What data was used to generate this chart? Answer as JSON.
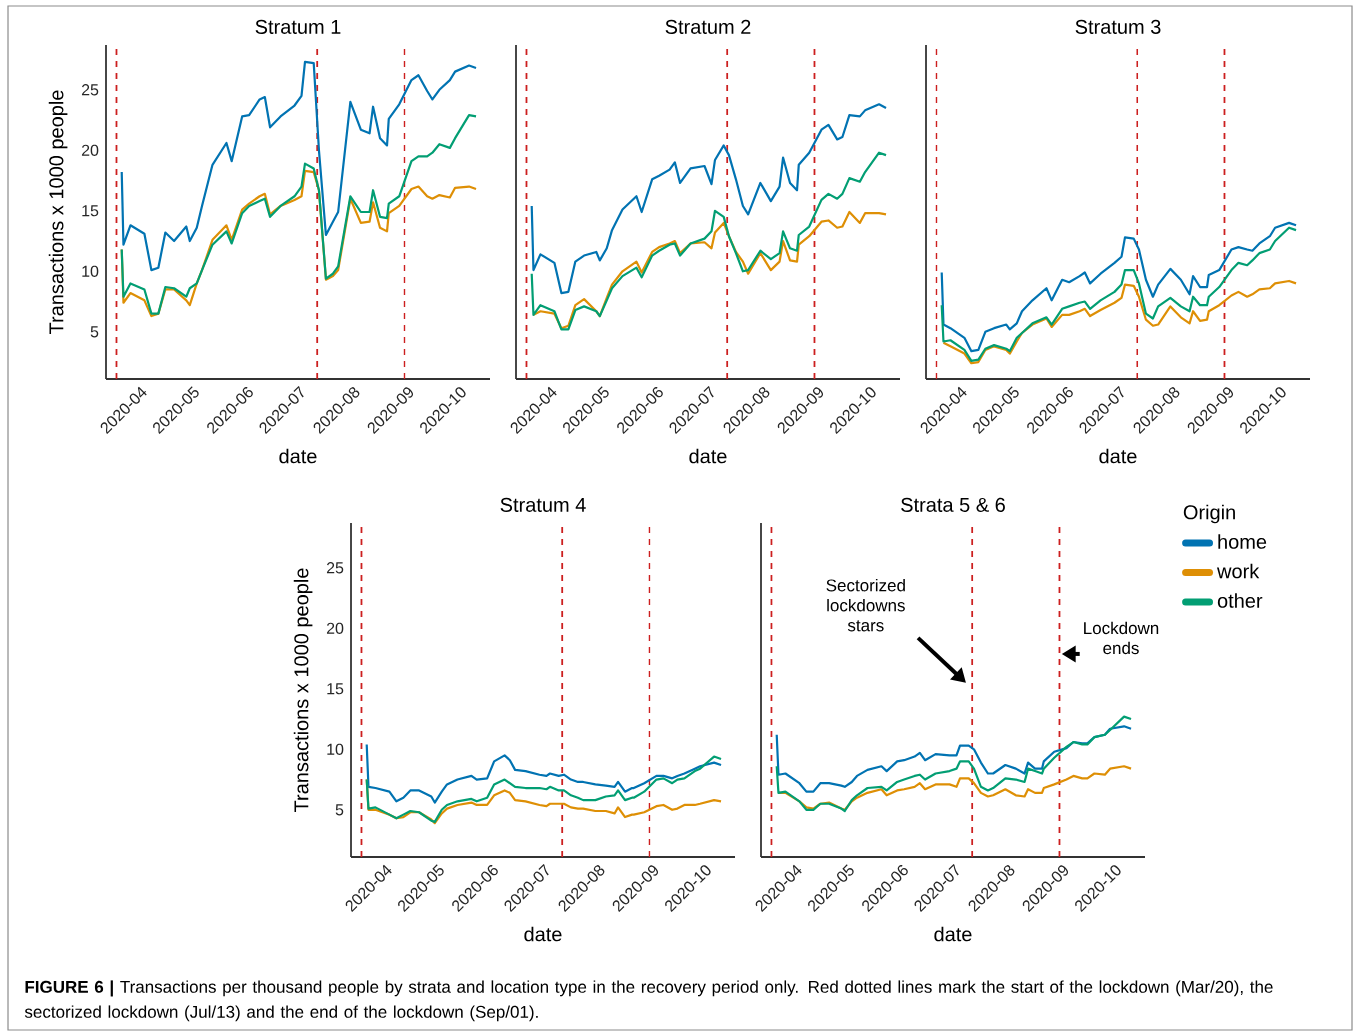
{
  "chart_data": [
    {
      "type": "line",
      "title": "Stratum 1",
      "xlabel": "date",
      "ylabel": "Transactions x 1000 people",
      "x": [
        "2020-03-23",
        "2020-03-24",
        "2020-03-28",
        "2020-04-05",
        "2020-04-09",
        "2020-04-13",
        "2020-04-17",
        "2020-04-22",
        "2020-04-29",
        "2020-05-01",
        "2020-05-05",
        "2020-05-08",
        "2020-05-14",
        "2020-05-22",
        "2020-05-25",
        "2020-05-31",
        "2020-06-04",
        "2020-06-10",
        "2020-06-13",
        "2020-06-16",
        "2020-06-22",
        "2020-06-30",
        "2020-07-04",
        "2020-07-06",
        "2020-07-11",
        "2020-07-14",
        "2020-07-18",
        "2020-07-22",
        "2020-07-25",
        "2020-08-01",
        "2020-08-07",
        "2020-08-12",
        "2020-08-14",
        "2020-08-18",
        "2020-08-22",
        "2020-08-23",
        "2020-08-29",
        "2020-09-05",
        "2020-09-09",
        "2020-09-14",
        "2020-09-17",
        "2020-09-21",
        "2020-09-27",
        "2020-09-30",
        "2020-10-08",
        "2020-10-12"
      ],
      "series": [
        {
          "color": "#0173b2",
          "values": [
            18.2,
            12.2,
            13.8,
            13.1,
            10.1,
            10.3,
            13.2,
            12.5,
            13.7,
            12.5,
            13.6,
            15.4,
            18.8,
            20.6,
            19.1,
            22.8,
            22.9,
            24.2,
            24.4,
            21.9,
            22.8,
            23.7,
            24.5,
            27.3,
            27.2,
            20.0,
            13.0,
            14.1,
            14.9,
            24.0,
            21.7,
            21.4,
            23.6,
            21.0,
            20.4,
            22.6,
            23.8,
            25.8,
            26.2,
            24.9,
            24.2,
            25.0,
            25.8,
            26.5,
            27.0,
            26.8
          ]
        },
        {
          "color": "#de8f05",
          "values": [
            11.8,
            7.4,
            8.2,
            7.6,
            6.3,
            6.5,
            8.5,
            8.5,
            7.6,
            7.2,
            9.0,
            10.1,
            12.6,
            13.8,
            12.6,
            15.1,
            15.6,
            16.2,
            16.4,
            14.7,
            15.4,
            15.9,
            16.2,
            18.3,
            18.2,
            16.7,
            9.3,
            9.6,
            10.1,
            16.0,
            14.0,
            14.1,
            15.7,
            13.6,
            13.3,
            14.8,
            15.4,
            16.8,
            17.0,
            16.2,
            16.0,
            16.3,
            16.1,
            16.9,
            17.0,
            16.8
          ]
        },
        {
          "color": "#029e73",
          "values": [
            11.8,
            7.9,
            9.0,
            8.5,
            6.5,
            6.5,
            8.7,
            8.6,
            7.9,
            8.6,
            9.0,
            10.1,
            12.2,
            13.3,
            12.3,
            14.8,
            15.4,
            15.8,
            16.0,
            14.5,
            15.4,
            16.2,
            17.0,
            18.9,
            18.5,
            16.7,
            9.4,
            9.8,
            10.4,
            16.2,
            14.9,
            14.9,
            16.7,
            14.5,
            14.4,
            15.6,
            16.2,
            19.1,
            19.5,
            19.5,
            19.8,
            20.5,
            20.2,
            21.0,
            22.9,
            22.8
          ]
        }
      ],
      "xlim": [
        "2020-03-14",
        "2020-10-20"
      ],
      "ylim": [
        1.1,
        28.7
      ],
      "xticks": [
        {
          "value": "2020-04-01",
          "label": "2020-04"
        },
        {
          "value": "2020-05-01",
          "label": "2020-05"
        },
        {
          "value": "2020-06-01",
          "label": "2020-06"
        },
        {
          "value": "2020-07-01",
          "label": "2020-07"
        },
        {
          "value": "2020-08-01",
          "label": "2020-08"
        },
        {
          "value": "2020-09-01",
          "label": "2020-09"
        },
        {
          "value": "2020-10-01",
          "label": "2020-10"
        }
      ],
      "yticks": [
        5,
        10,
        15,
        20,
        25
      ],
      "ref_lines": [
        {
          "axis": "x",
          "value": "2020-03-20",
          "color": "#cc1f1f",
          "line_style": "dashed"
        },
        {
          "axis": "x",
          "value": "2020-07-13",
          "color": "#cc1f1f",
          "line_style": "dashed"
        },
        {
          "axis": "x",
          "value": "2020-09-01",
          "color": "#cc1f1f",
          "line_style": "dashed"
        }
      ]
    },
    {
      "type": "line",
      "title": "Stratum 2",
      "xlabel": "date",
      "tick_labels": "x",
      "x": [
        "2020-03-23",
        "2020-03-24",
        "2020-03-28",
        "2020-04-05",
        "2020-04-09",
        "2020-04-13",
        "2020-04-17",
        "2020-04-22",
        "2020-04-29",
        "2020-05-01",
        "2020-05-05",
        "2020-05-08",
        "2020-05-14",
        "2020-05-22",
        "2020-05-25",
        "2020-05-31",
        "2020-06-04",
        "2020-06-10",
        "2020-06-13",
        "2020-06-16",
        "2020-06-22",
        "2020-06-30",
        "2020-07-04",
        "2020-07-06",
        "2020-07-11",
        "2020-07-14",
        "2020-07-18",
        "2020-07-22",
        "2020-07-25",
        "2020-08-01",
        "2020-08-07",
        "2020-08-12",
        "2020-08-14",
        "2020-08-18",
        "2020-08-22",
        "2020-08-23",
        "2020-08-29",
        "2020-09-05",
        "2020-09-09",
        "2020-09-14",
        "2020-09-17",
        "2020-09-21",
        "2020-09-27",
        "2020-09-30",
        "2020-10-08",
        "2020-10-12"
      ],
      "series": [
        {
          "color": "#0173b2",
          "values": [
            15.4,
            10.1,
            11.4,
            10.7,
            8.2,
            8.3,
            10.8,
            11.3,
            11.6,
            10.9,
            11.9,
            13.4,
            15.1,
            16.2,
            14.9,
            17.6,
            17.9,
            18.4,
            19.0,
            17.3,
            18.5,
            18.7,
            17.2,
            19.2,
            20.4,
            19.6,
            17.6,
            15.4,
            14.7,
            17.3,
            15.8,
            17.0,
            19.4,
            17.3,
            16.7,
            18.8,
            19.8,
            21.7,
            22.1,
            20.9,
            21.1,
            22.9,
            22.8,
            23.3,
            23.8,
            23.5
          ]
        },
        {
          "color": "#de8f05",
          "values": [
            null,
            6.4,
            6.7,
            6.5,
            5.3,
            5.5,
            7.2,
            7.7,
            6.7,
            6.3,
            7.8,
            8.9,
            10.0,
            10.8,
            9.9,
            11.6,
            12.0,
            12.3,
            12.5,
            11.5,
            12.3,
            12.4,
            11.9,
            13.2,
            14.0,
            12.9,
            11.6,
            10.8,
            9.8,
            11.5,
            10.1,
            10.8,
            12.5,
            10.9,
            10.8,
            12.2,
            12.9,
            14.1,
            14.2,
            13.6,
            13.7,
            14.9,
            14.0,
            14.8,
            14.8,
            14.7
          ]
        },
        {
          "color": "#029e73",
          "values": [
            9.8,
            6.4,
            7.2,
            6.7,
            5.2,
            5.2,
            6.8,
            7.1,
            6.7,
            6.3,
            7.6,
            8.6,
            9.6,
            10.3,
            9.5,
            11.3,
            11.7,
            12.2,
            12.3,
            11.3,
            12.3,
            12.7,
            13.3,
            15.0,
            14.5,
            12.9,
            11.5,
            10.0,
            10.1,
            11.7,
            11.0,
            11.5,
            13.3,
            11.9,
            11.7,
            13.0,
            13.7,
            15.9,
            16.4,
            16.0,
            16.4,
            17.7,
            17.4,
            18.2,
            19.8,
            19.6
          ]
        }
      ],
      "xlim": [
        "2020-03-14",
        "2020-10-20"
      ],
      "ylim": [
        1.1,
        28.7
      ],
      "xticks": [
        {
          "value": "2020-04-01",
          "label": "2020-04"
        },
        {
          "value": "2020-05-01",
          "label": "2020-05"
        },
        {
          "value": "2020-06-01",
          "label": "2020-06"
        },
        {
          "value": "2020-07-01",
          "label": "2020-07"
        },
        {
          "value": "2020-08-01",
          "label": "2020-08"
        },
        {
          "value": "2020-09-01",
          "label": "2020-09"
        },
        {
          "value": "2020-10-01",
          "label": "2020-10"
        }
      ],
      "yticks": [
        5,
        10,
        15,
        20,
        25
      ],
      "ref_lines": [
        {
          "axis": "x",
          "value": "2020-03-20",
          "color": "#cc1f1f",
          "line_style": "dashed"
        },
        {
          "axis": "x",
          "value": "2020-07-13",
          "color": "#cc1f1f",
          "line_style": "dashed"
        },
        {
          "axis": "x",
          "value": "2020-09-01",
          "color": "#cc1f1f",
          "line_style": "dashed"
        }
      ]
    },
    {
      "type": "line",
      "title": "Stratum 3",
      "xlabel": "date",
      "tick_labels": "x",
      "x": [
        "2020-03-23",
        "2020-03-24",
        "2020-03-28",
        "2020-04-05",
        "2020-04-09",
        "2020-04-13",
        "2020-04-17",
        "2020-04-22",
        "2020-04-29",
        "2020-05-01",
        "2020-05-05",
        "2020-05-08",
        "2020-05-14",
        "2020-05-22",
        "2020-05-25",
        "2020-05-31",
        "2020-06-04",
        "2020-06-10",
        "2020-06-13",
        "2020-06-16",
        "2020-06-22",
        "2020-06-30",
        "2020-07-04",
        "2020-07-06",
        "2020-07-11",
        "2020-07-14",
        "2020-07-18",
        "2020-07-22",
        "2020-07-25",
        "2020-08-01",
        "2020-08-07",
        "2020-08-12",
        "2020-08-14",
        "2020-08-18",
        "2020-08-22",
        "2020-08-23",
        "2020-08-29",
        "2020-09-05",
        "2020-09-09",
        "2020-09-14",
        "2020-09-17",
        "2020-09-21",
        "2020-09-27",
        "2020-09-30",
        "2020-10-08",
        "2020-10-12"
      ],
      "series": [
        {
          "color": "#0173b2",
          "values": [
            9.9,
            5.6,
            5.3,
            4.5,
            3.4,
            3.5,
            5.0,
            5.3,
            5.6,
            5.2,
            5.7,
            6.7,
            7.6,
            8.6,
            7.6,
            9.3,
            9.1,
            9.6,
            9.9,
            9.0,
            9.8,
            10.7,
            11.2,
            12.8,
            12.7,
            11.8,
            9.3,
            7.9,
            8.9,
            10.2,
            9.3,
            8.1,
            9.6,
            8.7,
            8.7,
            9.7,
            10.1,
            11.8,
            12.0,
            11.8,
            11.7,
            12.3,
            12.9,
            13.6,
            14.0,
            13.8
          ]
        },
        {
          "color": "#de8f05",
          "values": [
            null,
            4.1,
            3.8,
            3.2,
            2.4,
            2.5,
            3.5,
            3.8,
            3.5,
            3.2,
            4.2,
            4.9,
            5.6,
            6.1,
            5.4,
            6.4,
            6.4,
            6.7,
            6.9,
            6.3,
            6.8,
            7.4,
            7.8,
            8.9,
            8.8,
            7.9,
            6.0,
            5.5,
            5.6,
            7.1,
            6.2,
            5.7,
            6.7,
            5.9,
            6.0,
            6.7,
            7.2,
            8.0,
            8.3,
            7.9,
            8.1,
            8.5,
            8.6,
            9.0,
            9.2,
            9.0
          ]
        },
        {
          "color": "#029e73",
          "values": [
            7.2,
            4.2,
            4.3,
            3.5,
            2.6,
            2.7,
            3.6,
            3.9,
            3.6,
            3.4,
            4.5,
            4.9,
            5.7,
            6.2,
            5.6,
            6.9,
            7.1,
            7.4,
            7.5,
            6.9,
            7.6,
            8.3,
            8.9,
            10.1,
            10.1,
            9.0,
            6.5,
            6.1,
            7.1,
            7.8,
            7.1,
            6.7,
            7.9,
            7.2,
            7.2,
            7.9,
            8.7,
            10.1,
            10.7,
            10.5,
            10.9,
            11.5,
            11.8,
            12.5,
            13.6,
            13.4
          ]
        }
      ],
      "xlim": [
        "2020-03-14",
        "2020-10-20"
      ],
      "ylim": [
        1.1,
        28.7
      ],
      "xticks": [
        {
          "value": "2020-04-01",
          "label": "2020-04"
        },
        {
          "value": "2020-05-01",
          "label": "2020-05"
        },
        {
          "value": "2020-06-01",
          "label": "2020-06"
        },
        {
          "value": "2020-07-01",
          "label": "2020-07"
        },
        {
          "value": "2020-08-01",
          "label": "2020-08"
        },
        {
          "value": "2020-09-01",
          "label": "2020-09"
        },
        {
          "value": "2020-10-01",
          "label": "2020-10"
        }
      ],
      "yticks": [
        5,
        10,
        15,
        20,
        25
      ],
      "ref_lines": [
        {
          "axis": "x",
          "value": "2020-03-20",
          "color": "#cc1f1f",
          "line_style": "dashed"
        },
        {
          "axis": "x",
          "value": "2020-07-13",
          "color": "#cc1f1f",
          "line_style": "dashed"
        },
        {
          "axis": "x",
          "value": "2020-09-01",
          "color": "#cc1f1f",
          "line_style": "dashed"
        }
      ]
    },
    {
      "type": "line",
      "title": "Stratum 4",
      "xlabel": "date",
      "ylabel": "Transactions x 1000 people",
      "x": [
        "2020-03-23",
        "2020-03-24",
        "2020-03-28",
        "2020-04-05",
        "2020-04-09",
        "2020-04-13",
        "2020-04-17",
        "2020-04-22",
        "2020-04-29",
        "2020-05-01",
        "2020-05-05",
        "2020-05-08",
        "2020-05-14",
        "2020-05-22",
        "2020-05-25",
        "2020-05-31",
        "2020-06-04",
        "2020-06-10",
        "2020-06-13",
        "2020-06-16",
        "2020-06-22",
        "2020-06-30",
        "2020-07-04",
        "2020-07-06",
        "2020-07-11",
        "2020-07-14",
        "2020-07-18",
        "2020-07-22",
        "2020-07-25",
        "2020-08-01",
        "2020-08-07",
        "2020-08-12",
        "2020-08-14",
        "2020-08-18",
        "2020-08-22",
        "2020-08-23",
        "2020-08-29",
        "2020-09-05",
        "2020-09-09",
        "2020-09-14",
        "2020-09-17",
        "2020-09-21",
        "2020-09-27",
        "2020-09-30",
        "2020-10-08",
        "2020-10-12"
      ],
      "series": [
        {
          "color": "#0173b2",
          "values": [
            10.4,
            6.9,
            6.8,
            6.5,
            5.7,
            6.0,
            6.6,
            6.6,
            6.1,
            5.6,
            6.5,
            7.1,
            7.5,
            7.8,
            7.5,
            7.6,
            9.0,
            9.5,
            9.1,
            8.3,
            8.2,
            7.9,
            7.8,
            8.0,
            7.8,
            7.9,
            7.5,
            7.3,
            7.3,
            7.1,
            7.0,
            6.9,
            7.3,
            6.5,
            6.8,
            6.8,
            7.2,
            7.8,
            7.8,
            7.6,
            7.8,
            8.0,
            8.4,
            8.6,
            8.9,
            8.7
          ]
        },
        {
          "color": "#de8f05",
          "values": [
            7.5,
            5.0,
            5.0,
            4.6,
            4.3,
            4.4,
            4.8,
            4.8,
            4.2,
            3.9,
            4.7,
            5.1,
            5.4,
            5.6,
            5.4,
            5.4,
            6.2,
            6.6,
            6.4,
            5.8,
            5.7,
            5.4,
            5.3,
            5.5,
            5.5,
            5.5,
            5.2,
            5.1,
            5.1,
            4.9,
            4.9,
            4.7,
            5.2,
            4.4,
            4.6,
            4.6,
            4.8,
            5.3,
            5.4,
            5.0,
            5.1,
            5.4,
            5.4,
            5.5,
            5.8,
            5.7
          ]
        },
        {
          "color": "#029e73",
          "values": [
            7.5,
            5.1,
            5.2,
            4.6,
            4.3,
            4.6,
            4.9,
            4.8,
            4.1,
            4.0,
            5.0,
            5.4,
            5.7,
            5.9,
            5.7,
            6.0,
            7.1,
            7.5,
            7.2,
            6.9,
            6.8,
            6.8,
            6.7,
            6.9,
            6.6,
            6.6,
            6.2,
            6.0,
            5.8,
            5.8,
            6.1,
            6.2,
            6.6,
            5.8,
            6.0,
            6.0,
            6.5,
            7.5,
            7.6,
            7.2,
            7.5,
            7.6,
            8.2,
            8.4,
            9.4,
            9.2
          ]
        }
      ],
      "xlim": [
        "2020-03-14",
        "2020-10-20"
      ],
      "ylim": [
        1.1,
        28.7
      ],
      "xticks": [
        {
          "value": "2020-04-01",
          "label": "2020-04"
        },
        {
          "value": "2020-05-01",
          "label": "2020-05"
        },
        {
          "value": "2020-06-01",
          "label": "2020-06"
        },
        {
          "value": "2020-07-01",
          "label": "2020-07"
        },
        {
          "value": "2020-08-01",
          "label": "2020-08"
        },
        {
          "value": "2020-09-01",
          "label": "2020-09"
        },
        {
          "value": "2020-10-01",
          "label": "2020-10"
        }
      ],
      "yticks": [
        5,
        10,
        15,
        20,
        25
      ],
      "ref_lines": [
        {
          "axis": "x",
          "value": "2020-03-20",
          "color": "#cc1f1f",
          "line_style": "dashed"
        },
        {
          "axis": "x",
          "value": "2020-07-13",
          "color": "#cc1f1f",
          "line_style": "dashed"
        },
        {
          "axis": "x",
          "value": "2020-09-01",
          "color": "#cc1f1f",
          "line_style": "dashed"
        }
      ]
    },
    {
      "type": "line",
      "title": "Strata 5 & 6",
      "xlabel": "date",
      "tick_labels": "x",
      "legend": "right",
      "legend_title": "Origin",
      "x": [
        "2020-03-23",
        "2020-03-24",
        "2020-03-28",
        "2020-04-05",
        "2020-04-09",
        "2020-04-13",
        "2020-04-17",
        "2020-04-22",
        "2020-04-29",
        "2020-05-01",
        "2020-05-05",
        "2020-05-08",
        "2020-05-14",
        "2020-05-22",
        "2020-05-25",
        "2020-05-31",
        "2020-06-04",
        "2020-06-10",
        "2020-06-13",
        "2020-06-16",
        "2020-06-22",
        "2020-06-30",
        "2020-07-04",
        "2020-07-06",
        "2020-07-11",
        "2020-07-14",
        "2020-07-18",
        "2020-07-22",
        "2020-07-25",
        "2020-08-01",
        "2020-08-07",
        "2020-08-12",
        "2020-08-14",
        "2020-08-18",
        "2020-08-22",
        "2020-08-23",
        "2020-08-29",
        "2020-09-05",
        "2020-09-09",
        "2020-09-14",
        "2020-09-17",
        "2020-09-21",
        "2020-09-27",
        "2020-09-30",
        "2020-10-08",
        "2020-10-12"
      ],
      "series": [
        {
          "name": "home",
          "color": "#0173b2",
          "values": [
            11.2,
            7.9,
            8.0,
            7.2,
            6.5,
            6.5,
            7.2,
            7.2,
            7.0,
            6.9,
            7.3,
            7.8,
            8.3,
            8.6,
            8.2,
            9.0,
            9.1,
            9.4,
            9.7,
            9.1,
            9.6,
            9.5,
            9.5,
            10.3,
            10.3,
            10.0,
            8.9,
            8.0,
            8.0,
            8.7,
            8.4,
            8.0,
            8.9,
            8.4,
            8.4,
            9.0,
            9.8,
            10.1,
            10.6,
            10.5,
            10.5,
            11.0,
            11.2,
            11.7,
            11.9,
            11.7
          ]
        },
        {
          "name": "work",
          "color": "#de8f05",
          "values": [
            null,
            6.4,
            6.4,
            5.7,
            5.2,
            5.1,
            5.5,
            5.6,
            5.1,
            5.0,
            5.7,
            6.0,
            6.4,
            6.7,
            6.2,
            6.6,
            6.7,
            6.9,
            7.2,
            6.7,
            7.1,
            7.1,
            6.9,
            7.6,
            7.6,
            7.2,
            6.4,
            6.1,
            6.2,
            6.7,
            6.2,
            6.1,
            6.7,
            6.4,
            6.4,
            6.8,
            7.1,
            7.5,
            7.8,
            7.6,
            7.6,
            8.0,
            7.9,
            8.4,
            8.6,
            8.4
          ]
        },
        {
          "name": "other",
          "color": "#029e73",
          "values": [
            8.6,
            6.4,
            6.5,
            5.7,
            5.0,
            5.0,
            5.5,
            5.5,
            5.1,
            4.9,
            5.8,
            6.2,
            6.8,
            6.9,
            6.6,
            7.3,
            7.5,
            7.8,
            7.9,
            7.5,
            8.0,
            8.2,
            8.4,
            9.0,
            9.0,
            8.4,
            6.9,
            6.6,
            6.8,
            7.6,
            7.5,
            7.3,
            8.4,
            8.2,
            8.0,
            8.4,
            9.3,
            10.2,
            10.6,
            10.4,
            10.4,
            11.0,
            11.2,
            11.6,
            12.7,
            12.5
          ]
        }
      ],
      "xlim": [
        "2020-03-14",
        "2020-10-20"
      ],
      "ylim": [
        1.1,
        28.7
      ],
      "xticks": [
        {
          "value": "2020-04-01",
          "label": "2020-04"
        },
        {
          "value": "2020-05-01",
          "label": "2020-05"
        },
        {
          "value": "2020-06-01",
          "label": "2020-06"
        },
        {
          "value": "2020-07-01",
          "label": "2020-07"
        },
        {
          "value": "2020-08-01",
          "label": "2020-08"
        },
        {
          "value": "2020-09-01",
          "label": "2020-09"
        },
        {
          "value": "2020-10-01",
          "label": "2020-10"
        }
      ],
      "yticks": [
        5,
        10,
        15,
        20,
        25
      ],
      "ref_lines": [
        {
          "axis": "x",
          "value": "2020-03-20",
          "color": "#cc1f1f",
          "line_style": "dashed"
        },
        {
          "axis": "x",
          "value": "2020-07-13",
          "color": "#cc1f1f",
          "line_style": "dashed"
        },
        {
          "axis": "x",
          "value": "2020-09-01",
          "color": "#cc1f1f",
          "line_style": "dashed"
        }
      ],
      "annotations": [
        "Sectorized lockdowns stars",
        "Lockdown ends",
        "**FIGURE 6 |** Transactions per thousand people by strata and location type in the recovery period only. Red dotted lines mark the start of the lockdown (Mar/20), the sectorized lockdown (Jul/13) and the end of the lockdown (Sep/01)."
      ]
    }
  ]
}
